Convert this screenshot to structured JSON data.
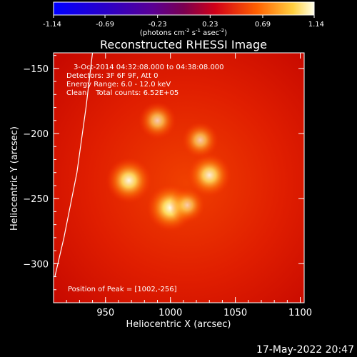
{
  "chart_data": {
    "type": "heatmap",
    "title": "Reconstructed RHESSI Image",
    "xlabel": "Heliocentric X (arcsec)",
    "ylabel": "Heliocentric Y (arcsec)",
    "xlim": [
      910,
      1103
    ],
    "ylim": [
      -330,
      -138
    ],
    "x_ticks": [
      950,
      1000,
      1050,
      1100
    ],
    "y_ticks": [
      -150,
      -200,
      -250,
      -300
    ],
    "colorbar": {
      "min": -1.14,
      "max": 1.14,
      "ticks": [
        "-1.14",
        "-0.69",
        "-0.23",
        "0.23",
        "0.69",
        "1.14"
      ],
      "label_main": "(photons cm",
      "label_exp1": "-2",
      "label_mid1": " s",
      "label_exp2": "-1",
      "label_mid2": " asec",
      "label_exp3": "-2",
      "label_end": ")"
    },
    "annotations": [
      "3-Oct-2014 04:32:08.000 to 04:38:08.000",
      "Detectors: 3F 6F 9F, Att 0",
      "Energy Range: 6.0 - 12.0 keV",
      "Clean    Total counts: 6.52E+05"
    ],
    "peak_label": "Position of Peak = [1002,-256]",
    "sources": [
      {
        "x": 968,
        "y": -236,
        "intensity": 1.0
      },
      {
        "x": 1000,
        "y": -257,
        "intensity": 1.1
      },
      {
        "x": 1030,
        "y": -232,
        "intensity": 0.9
      },
      {
        "x": 1023,
        "y": -205,
        "intensity": 0.55
      },
      {
        "x": 1013,
        "y": -255,
        "intensity": 0.5
      },
      {
        "x": 990,
        "y": -190,
        "intensity": 0.6
      }
    ],
    "limb_curve": [
      [
        940,
        -138
      ],
      [
        935,
        -180
      ],
      [
        928,
        -230
      ],
      [
        918,
        -280
      ],
      [
        911,
        -310
      ]
    ]
  },
  "footer": {
    "timestamp": "17-May-2022 20:47"
  }
}
